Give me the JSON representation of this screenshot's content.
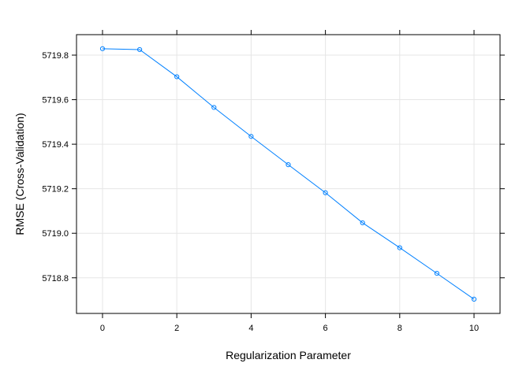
{
  "chart_data": {
    "type": "line",
    "xlabel": "Regularization Parameter",
    "ylabel": "RMSE (Cross-Validation)",
    "x": [
      0,
      1,
      2,
      3,
      4,
      5,
      6,
      7,
      8,
      9,
      10
    ],
    "series": [
      {
        "values": [
          5719.829,
          5719.825,
          5719.703,
          5719.565,
          5719.435,
          5719.308,
          5719.182,
          5719.047,
          5718.935,
          5718.82,
          5718.704
        ]
      }
    ],
    "xlim": [
      -0.7,
      10.7
    ],
    "ylim": [
      5718.64,
      5719.892
    ],
    "xticks": [
      0,
      2,
      4,
      6,
      8,
      10
    ],
    "yticks": [
      5718.8,
      5719.0,
      5719.2,
      5719.4,
      5719.6,
      5719.8
    ],
    "ytick_labels": [
      "5718.8",
      "5719.0",
      "5719.2",
      "5719.4",
      "5719.6",
      "5719.8"
    ],
    "grid": true,
    "colors": {
      "line": "#0080ff",
      "grid": "#e6e6e6",
      "frame": "#000000"
    }
  }
}
